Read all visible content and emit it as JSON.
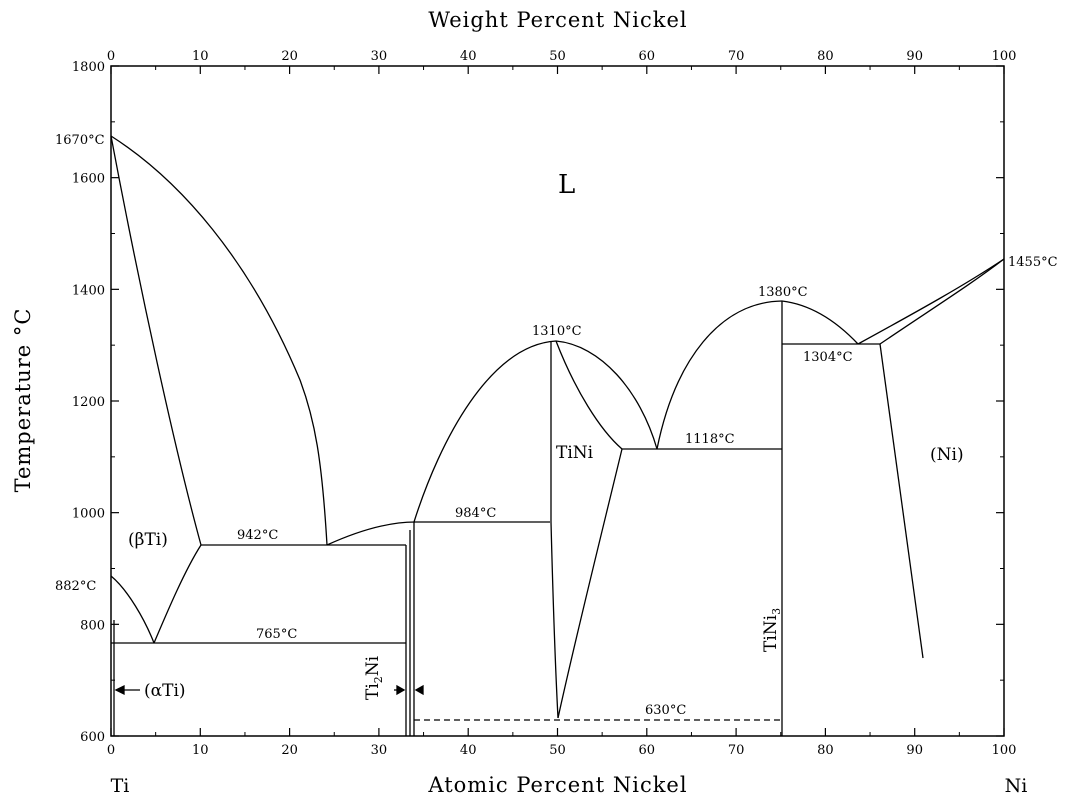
{
  "top_axis": {
    "title": "Weight Percent Nickel",
    "ticks": [
      "0",
      "10",
      "20",
      "30",
      "40",
      "50",
      "60",
      "70",
      "80",
      "90",
      "100"
    ]
  },
  "bottom_axis": {
    "title": "Atomic Percent Nickel",
    "ticks": [
      "0",
      "10",
      "20",
      "30",
      "40",
      "50",
      "60",
      "70",
      "80",
      "90",
      "100"
    ],
    "end_left": "Ti",
    "end_right": "Ni"
  },
  "left_axis": {
    "title": "Temperature °C",
    "ticks": [
      "600",
      "800",
      "1000",
      "1200",
      "1400",
      "1600",
      "1800"
    ]
  },
  "labels": {
    "t_ti_melt": "1670°C",
    "t_ni_melt": "1455°C",
    "t_ti_alpha": "882°C",
    "t_tini_melt": "1310°C",
    "t_tini3_melt": "1380°C",
    "t_eut_ni": "1304°C",
    "t_eut_mid": "1118°C",
    "t_peritectic": "984°C",
    "t_eut_ti": "942°C",
    "t_eutectoid": "765°C",
    "t_630": "630°C"
  },
  "phases": {
    "liquid": "L",
    "beta_ti": "(βTi)",
    "alpha_ti": "(αTi)",
    "tini": "TiNi",
    "ti2ni_sub_a": "Ti",
    "ti2ni_sub_b": "2",
    "ti2ni_sub_c": "Ni",
    "tini3_a": "TiNi",
    "tini3_b": "3",
    "ni": "(Ni)"
  }
}
